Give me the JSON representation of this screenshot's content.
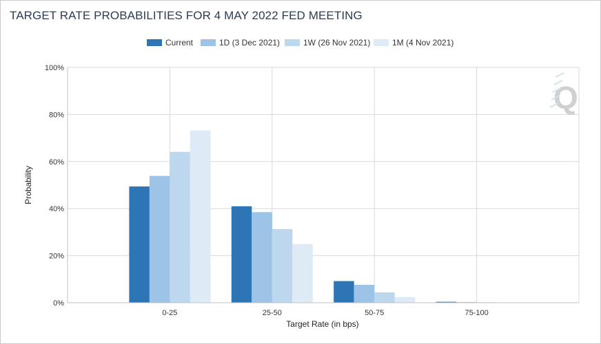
{
  "title": "TARGET RATE PROBABILITIES FOR 4 MAY 2022 FED MEETING",
  "watermark": {
    "letter": "Q",
    "icon": "q-logo-icon"
  },
  "chart_data": {
    "type": "bar",
    "title": "TARGET RATE PROBABILITIES FOR 4 MAY 2022 FED MEETING",
    "xlabel": "Target Rate (in bps)",
    "ylabel": "Probability",
    "ylim": [
      0,
      100
    ],
    "yticks": [
      "0%",
      "20%",
      "40%",
      "60%",
      "80%",
      "100%"
    ],
    "ytick_values": [
      0,
      20,
      40,
      60,
      80,
      100
    ],
    "grid": true,
    "legend_position": "top-center",
    "categories": [
      "0-25",
      "25-50",
      "50-75",
      "75-100"
    ],
    "series": [
      {
        "name": "Current",
        "color": "#2e75b6",
        "values": [
          49.4,
          41.0,
          9.2,
          0.4
        ]
      },
      {
        "name": "1D (3 Dec 2021)",
        "color": "#9dc3e6",
        "values": [
          53.9,
          38.5,
          7.6,
          0.3
        ]
      },
      {
        "name": "1W (26 Nov 2021)",
        "color": "#bdd7ee",
        "values": [
          64.1,
          31.3,
          4.4,
          0.2
        ]
      },
      {
        "name": "1M (4 Nov 2021)",
        "color": "#deebf7",
        "values": [
          73.2,
          24.9,
          2.4,
          0.1
        ]
      }
    ]
  }
}
